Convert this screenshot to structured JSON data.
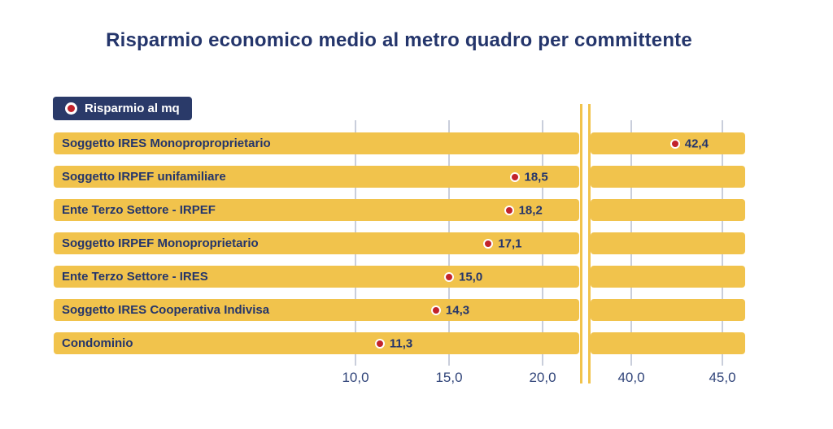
{
  "title": "Risparmio economico medio al metro quadro per committente",
  "legend": {
    "label": "Risparmio al mq",
    "marker": "red-dot"
  },
  "colors": {
    "navy": "#24356b",
    "axis_text": "#31457a",
    "bar_yellow": "#f1c34c",
    "marker_red": "#c2232b",
    "gridline": "#c9cedb",
    "legend_bg": "#2a3a69",
    "legend_text": "#ffffff",
    "background": "#ffffff"
  },
  "chart_data": {
    "type": "bar",
    "orientation": "horizontal",
    "title": "Risparmio economico medio al metro quadro per committente",
    "legend_position": "top-left",
    "grid": true,
    "series": [
      {
        "name": "Risparmio al mq",
        "categories": [
          "Soggetto IRES Monoproproprietario",
          "Soggetto IRPEF unifamiliare",
          "Ente Terzo Settore - IRPEF",
          "Soggetto IRPEF Monoproprietario",
          "Ente Terzo Settore - IRES",
          "Soggetto IRES Cooperativa Indivisa",
          "Condominio"
        ],
        "values": [
          42.4,
          18.5,
          18.2,
          17.1,
          15.0,
          14.3,
          11.3
        ],
        "value_labels": [
          "42,4",
          "18,5",
          "18,2",
          "17,1",
          "15,0",
          "14,3",
          "11,3"
        ]
      }
    ],
    "x_axis": {
      "ticks": [
        {
          "value": 10,
          "label": "10,0"
        },
        {
          "value": 15,
          "label": "15,0"
        },
        {
          "value": 20,
          "label": "20,0"
        },
        {
          "value": 40,
          "label": "40,0"
        },
        {
          "value": 45,
          "label": "45,0"
        }
      ],
      "axis_break": {
        "after_value": 20,
        "before_value": 40
      }
    }
  }
}
